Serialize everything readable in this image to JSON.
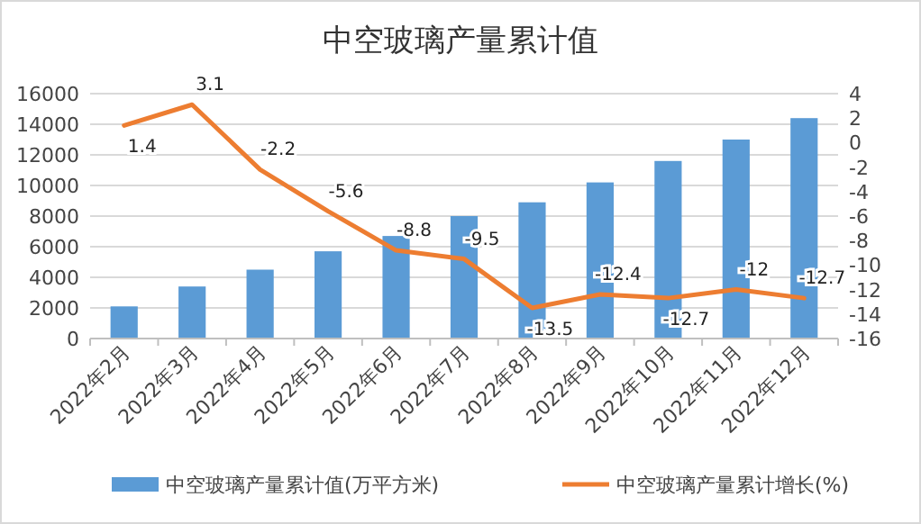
{
  "chart_data": {
    "type": "bar",
    "title": "中空玻璃产量累计值",
    "categories": [
      "2022年2月",
      "2022年3月",
      "2022年4月",
      "2022年5月",
      "2022年6月",
      "2022年7月",
      "2022年8月",
      "2022年9月",
      "2022年10月",
      "2022年11月",
      "2022年12月"
    ],
    "series": [
      {
        "name": "中空玻璃产量累计值(万平方米)",
        "color": "#5b9bd5",
        "values": [
          2100,
          3400,
          4500,
          5700,
          6700,
          8000,
          8900,
          10200,
          11600,
          13000,
          14400
        ]
      },
      {
        "name": "中空玻璃产量累计增长(%)",
        "type": "line",
        "axis": "y2",
        "color": "#ed7d31",
        "values": [
          1.4,
          3.1,
          -2.2,
          -5.6,
          -8.8,
          -9.5,
          -13.5,
          -12.4,
          -12.7,
          -12,
          -12.7
        ],
        "value_labels": [
          "1.4",
          "3.1",
          "-2.2",
          "-5.6",
          "-8.8",
          "-9.5",
          "-13.5",
          "-12.4",
          "-12.7",
          "-12",
          "-12.7"
        ]
      }
    ],
    "ylim": [
      0,
      16000
    ],
    "yticks": [
      0,
      2000,
      4000,
      6000,
      8000,
      10000,
      12000,
      14000,
      16000
    ],
    "y2lim": [
      -16,
      4
    ],
    "y2ticks": [
      -16,
      -14,
      -12,
      -10,
      -8,
      -6,
      -4,
      -2,
      0,
      2,
      4
    ],
    "grid": "y",
    "legend": "bottom",
    "marker": "none",
    "line_style": "solid"
  }
}
